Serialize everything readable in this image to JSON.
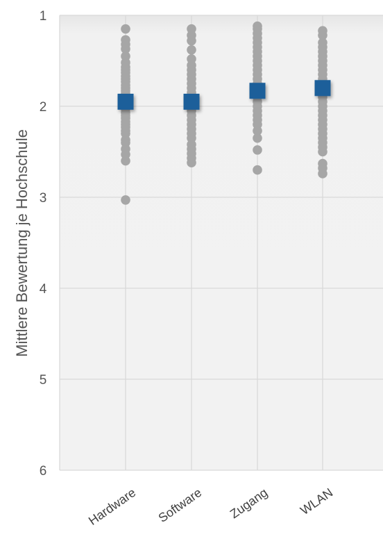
{
  "chart_data": {
    "type": "scatter",
    "title": "",
    "xlabel": "",
    "ylabel": "Mittlere Bewertung je Hochschule",
    "ylim": [
      1,
      6
    ],
    "y_inverted": true,
    "y_ticks": [
      "1",
      "2",
      "3",
      "4",
      "5",
      "6"
    ],
    "grid": true,
    "legend": "none",
    "categories": [
      "Hardware",
      "Software",
      "Zugang",
      "WLAN"
    ],
    "colors": {
      "points": "#a6a6a6",
      "mean": "#1f5f9a",
      "plot_background": "#efefef",
      "grid": "#d9d9d9"
    },
    "series": [
      {
        "category": "Hardware",
        "mean": 1.95,
        "points": [
          1.15,
          1.27,
          1.32,
          1.37,
          1.45,
          1.52,
          1.57,
          1.6,
          1.63,
          1.67,
          1.7,
          1.73,
          1.77,
          1.8,
          1.83,
          1.86,
          1.9,
          1.93,
          1.97,
          2.0,
          2.03,
          2.07,
          2.1,
          2.13,
          2.17,
          2.2,
          2.23,
          2.27,
          2.3,
          2.37,
          2.4,
          2.47,
          2.53,
          2.6,
          3.03
        ]
      },
      {
        "category": "Software",
        "mean": 1.95,
        "points": [
          1.15,
          1.22,
          1.28,
          1.38,
          1.48,
          1.55,
          1.6,
          1.65,
          1.7,
          1.75,
          1.8,
          1.85,
          1.9,
          1.95,
          2.0,
          2.05,
          2.1,
          2.15,
          2.2,
          2.25,
          2.3,
          2.35,
          2.42,
          2.47,
          2.52,
          2.57,
          2.62
        ]
      },
      {
        "category": "Zugang",
        "mean": 1.83,
        "points": [
          1.12,
          1.15,
          1.2,
          1.25,
          1.3,
          1.35,
          1.4,
          1.45,
          1.5,
          1.55,
          1.6,
          1.65,
          1.7,
          1.75,
          1.8,
          1.85,
          1.9,
          1.95,
          2.0,
          2.05,
          2.1,
          2.15,
          2.2,
          2.27,
          2.35,
          2.48,
          2.7
        ]
      },
      {
        "category": "WLAN",
        "mean": 1.8,
        "points": [
          1.17,
          1.22,
          1.3,
          1.35,
          1.4,
          1.45,
          1.5,
          1.55,
          1.6,
          1.65,
          1.7,
          1.75,
          1.8,
          1.85,
          1.9,
          1.95,
          2.0,
          2.05,
          2.1,
          2.15,
          2.2,
          2.25,
          2.3,
          2.35,
          2.4,
          2.45,
          2.5,
          2.63,
          2.68,
          2.74
        ]
      }
    ]
  }
}
